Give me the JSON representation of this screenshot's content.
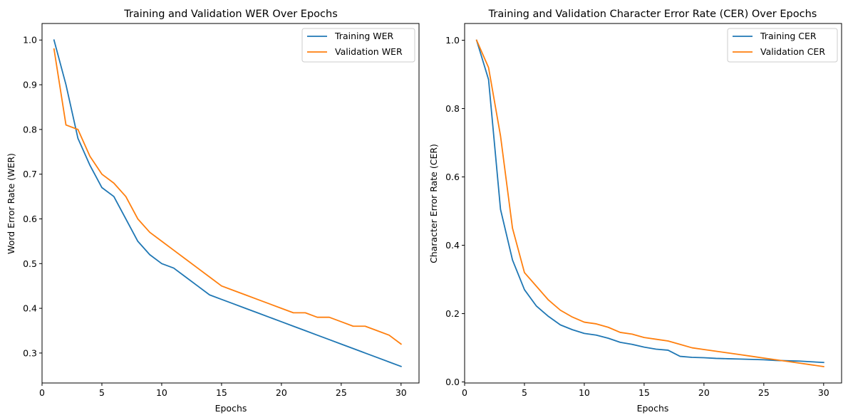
{
  "chart_data": [
    {
      "type": "line",
      "title": "Training and Validation WER Over Epochs",
      "xlabel": "Epochs",
      "ylabel": "Word Error Rate (WER)",
      "xlim": [
        0,
        31.5
      ],
      "ylim": [
        0.233,
        1.037
      ],
      "xticks": [
        0,
        5,
        10,
        15,
        20,
        25,
        30
      ],
      "yticks": [
        0.3,
        0.4,
        0.5,
        0.6,
        0.7,
        0.8,
        0.9,
        1.0
      ],
      "xtick_labels": [
        "0",
        "5",
        "10",
        "15",
        "20",
        "25",
        "30"
      ],
      "ytick_labels": [
        "0.3",
        "0.4",
        "0.5",
        "0.6",
        "0.7",
        "0.8",
        "0.9",
        "1.0"
      ],
      "grid": false,
      "legend_position": "top-right",
      "x": [
        1,
        2,
        3,
        4,
        5,
        6,
        7,
        8,
        9,
        10,
        11,
        12,
        13,
        14,
        15,
        16,
        17,
        18,
        19,
        20,
        21,
        22,
        23,
        24,
        25,
        26,
        27,
        28,
        29,
        30
      ],
      "series": [
        {
          "name": "Training WER",
          "color": "#1f77b4",
          "values": [
            1.0,
            0.9,
            0.78,
            0.72,
            0.67,
            0.65,
            0.6,
            0.55,
            0.52,
            0.5,
            0.49,
            0.47,
            0.45,
            0.43,
            0.42,
            0.41,
            0.4,
            0.39,
            0.38,
            0.37,
            0.36,
            0.35,
            0.34,
            0.33,
            0.32,
            0.31,
            0.3,
            0.29,
            0.28,
            0.27
          ]
        },
        {
          "name": "Validation WER",
          "color": "#ff7f0e",
          "values": [
            0.98,
            0.81,
            0.8,
            0.74,
            0.7,
            0.68,
            0.65,
            0.6,
            0.57,
            0.55,
            0.53,
            0.51,
            0.49,
            0.47,
            0.45,
            0.44,
            0.43,
            0.42,
            0.41,
            0.4,
            0.39,
            0.39,
            0.38,
            0.38,
            0.37,
            0.36,
            0.36,
            0.35,
            0.34,
            0.32
          ]
        }
      ]
    },
    {
      "type": "line",
      "title": "Training and Validation Character Error Rate (CER) Over Epochs",
      "xlabel": "Epochs",
      "ylabel": "Character Error Rate (CER)",
      "xlim": [
        0,
        31.5
      ],
      "ylim": [
        -0.003,
        1.049
      ],
      "xticks": [
        0,
        5,
        10,
        15,
        20,
        25,
        30
      ],
      "yticks": [
        0.0,
        0.2,
        0.4,
        0.6,
        0.8,
        1.0
      ],
      "xtick_labels": [
        "0",
        "5",
        "10",
        "15",
        "20",
        "25",
        "30"
      ],
      "ytick_labels": [
        "0.0",
        "0.2",
        "0.4",
        "0.6",
        "0.8",
        "1.0"
      ],
      "grid": false,
      "legend_position": "top-right",
      "x": [
        1,
        2,
        3,
        4,
        5,
        6,
        7,
        8,
        9,
        10,
        11,
        12,
        13,
        14,
        15,
        16,
        17,
        18,
        19,
        20,
        21,
        22,
        23,
        24,
        25,
        26,
        27,
        28,
        29,
        30
      ],
      "series": [
        {
          "name": "Training CER",
          "color": "#1f77b4",
          "values": [
            1.0,
            0.885,
            0.505,
            0.357,
            0.27,
            0.222,
            0.192,
            0.167,
            0.153,
            0.142,
            0.137,
            0.128,
            0.116,
            0.11,
            0.102,
            0.096,
            0.093,
            0.075,
            0.072,
            0.071,
            0.069,
            0.068,
            0.067,
            0.066,
            0.065,
            0.063,
            0.062,
            0.061,
            0.059,
            0.057
          ]
        },
        {
          "name": "Validation CER",
          "color": "#ff7f0e",
          "values": [
            1.0,
            0.92,
            0.72,
            0.45,
            0.32,
            0.28,
            0.24,
            0.21,
            0.19,
            0.175,
            0.17,
            0.16,
            0.145,
            0.14,
            0.13,
            0.125,
            0.12,
            0.11,
            0.1,
            0.095,
            0.09,
            0.085,
            0.08,
            0.075,
            0.07,
            0.065,
            0.06,
            0.055,
            0.05,
            0.045
          ]
        }
      ]
    }
  ]
}
